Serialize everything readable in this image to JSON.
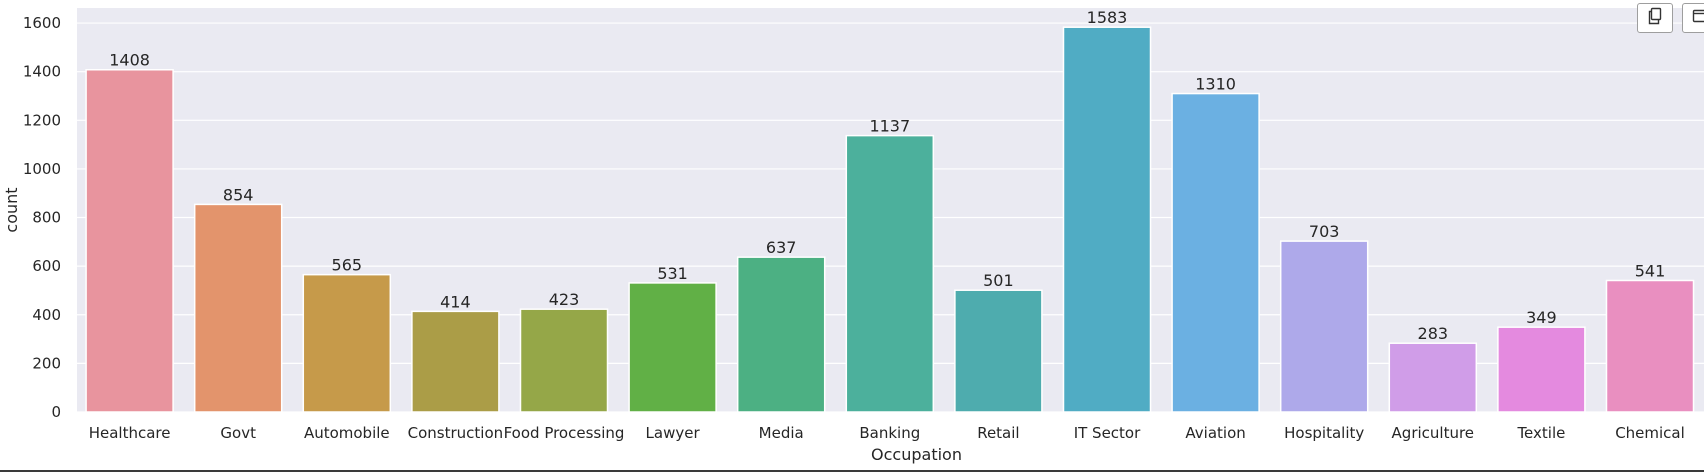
{
  "toolbar": {
    "buttons": [
      {
        "icon": "copy-icon"
      },
      {
        "icon": "export-icon"
      }
    ]
  },
  "chart_data": {
    "type": "bar",
    "title": "",
    "xlabel": "Occupation",
    "ylabel": "count",
    "categories": [
      "Healthcare",
      "Govt",
      "Automobile",
      "Construction",
      "Food Processing",
      "Lawyer",
      "Media",
      "Banking",
      "Retail",
      "IT Sector",
      "Aviation",
      "Hospitality",
      "Agriculture",
      "Textile",
      "Chemical"
    ],
    "values": [
      1408,
      854,
      565,
      414,
      423,
      531,
      637,
      1137,
      501,
      1583,
      1310,
      703,
      283,
      349,
      541
    ],
    "colors": [
      "#e8949e",
      "#e3946c",
      "#c69a4a",
      "#ab9d47",
      "#95a748",
      "#61b046",
      "#4cb083",
      "#4cb09c",
      "#4eacae",
      "#50acc4",
      "#6bb0e2",
      "#aea9ea",
      "#d09de8",
      "#e48adf",
      "#e98fc0"
    ],
    "yticks": [
      0,
      200,
      400,
      600,
      800,
      1000,
      1200,
      1400,
      1600
    ],
    "ylim": [
      0,
      1662
    ],
    "grid": true,
    "background": "#eaeaf2"
  }
}
